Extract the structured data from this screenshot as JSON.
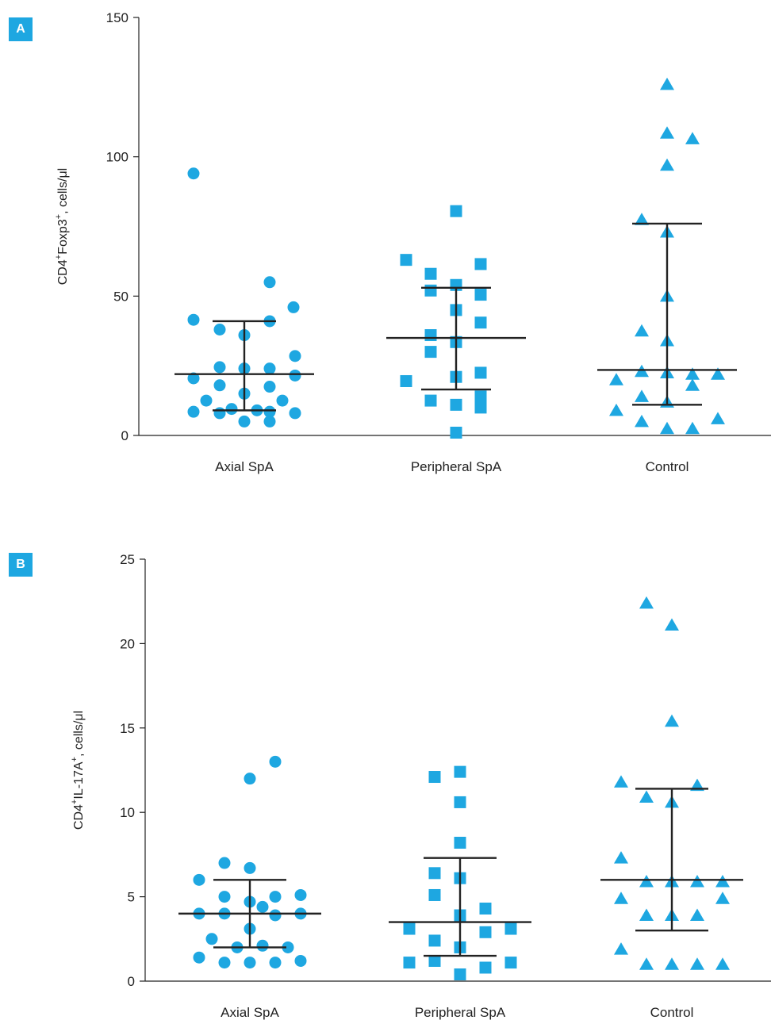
{
  "colors": {
    "marker": "#1ea7e1",
    "badge": "#1ea7e1",
    "axis": "#222222",
    "summary": "#222222"
  },
  "chart_data": [
    {
      "panel": "A",
      "type": "scatter",
      "categories": [
        "Axial SpA",
        "Peripheral SpA",
        "Control"
      ],
      "ylabel_parts": [
        "CD4",
        "+",
        "Foxp3",
        "+",
        ", cells/μl"
      ],
      "ylim": [
        0,
        150
      ],
      "yticks": [
        0,
        50,
        100,
        150
      ],
      "grid": false,
      "series": [
        {
          "category": "Axial SpA",
          "marker": "circle",
          "values": [
            94,
            55,
            46,
            41.5,
            41,
            38,
            36,
            28.5,
            24.5,
            24,
            24,
            21.5,
            20.5,
            18,
            17.5,
            15,
            12.5,
            12.5,
            9.5,
            9,
            8.5,
            8.5,
            8,
            8,
            5,
            5
          ]
        },
        {
          "category": "Peripheral SpA",
          "marker": "square",
          "values": [
            80.5,
            63,
            61.5,
            58,
            54,
            52,
            50.5,
            45,
            40.5,
            36,
            33.5,
            30,
            22.5,
            21,
            19.5,
            14,
            12.5,
            11,
            10,
            1
          ]
        },
        {
          "category": "Control",
          "marker": "triangle",
          "values": [
            126,
            108.5,
            106.5,
            97,
            77.5,
            73,
            50,
            37.5,
            34,
            23,
            22.5,
            22,
            22,
            20,
            18,
            14,
            12,
            9,
            6,
            5,
            2.5,
            2.5
          ]
        }
      ],
      "summary": [
        {
          "category": "Axial SpA",
          "median": 22,
          "q1": 9,
          "q3": 41
        },
        {
          "category": "Peripheral SpA",
          "median": 35,
          "q1": 16.5,
          "q3": 53
        },
        {
          "category": "Control",
          "median": 23.5,
          "q1": 11,
          "q3": 76
        }
      ]
    },
    {
      "panel": "B",
      "type": "scatter",
      "categories": [
        "Axial SpA",
        "Peripheral SpA",
        "Control"
      ],
      "ylabel_parts": [
        "CD4",
        "+",
        "IL-17A",
        "+",
        ", cells/μl"
      ],
      "ylim": [
        0,
        25
      ],
      "yticks": [
        0,
        5,
        10,
        15,
        20,
        25
      ],
      "grid": false,
      "series": [
        {
          "category": "Axial SpA",
          "marker": "circle",
          "values": [
            13,
            12,
            7,
            6.7,
            6,
            5.1,
            5,
            5,
            4.7,
            4.4,
            4,
            4,
            4,
            3.9,
            3.1,
            2.5,
            2.1,
            2,
            2,
            1.4,
            1.2,
            1.1,
            1.1,
            1.1
          ]
        },
        {
          "category": "Peripheral SpA",
          "marker": "square",
          "values": [
            12.4,
            12.1,
            10.6,
            8.2,
            6.4,
            6.1,
            5.1,
            4.3,
            3.9,
            3.1,
            3.1,
            2.9,
            2.4,
            2,
            1.2,
            1.1,
            1.1,
            0.8,
            0.4
          ]
        },
        {
          "category": "Control",
          "marker": "triangle",
          "values": [
            22.4,
            21.1,
            15.4,
            11.8,
            11.6,
            10.9,
            10.6,
            7.3,
            5.9,
            5.9,
            5.9,
            5.9,
            4.9,
            4.9,
            3.9,
            3.9,
            3.9,
            1.9,
            1,
            1,
            1,
            1
          ]
        }
      ],
      "summary": [
        {
          "category": "Axial SpA",
          "median": 4,
          "q1": 2,
          "q3": 6
        },
        {
          "category": "Peripheral SpA",
          "median": 3.5,
          "q1": 1.5,
          "q3": 7.3
        },
        {
          "category": "Control",
          "median": 6,
          "q1": 3,
          "q3": 11.4
        }
      ]
    }
  ]
}
